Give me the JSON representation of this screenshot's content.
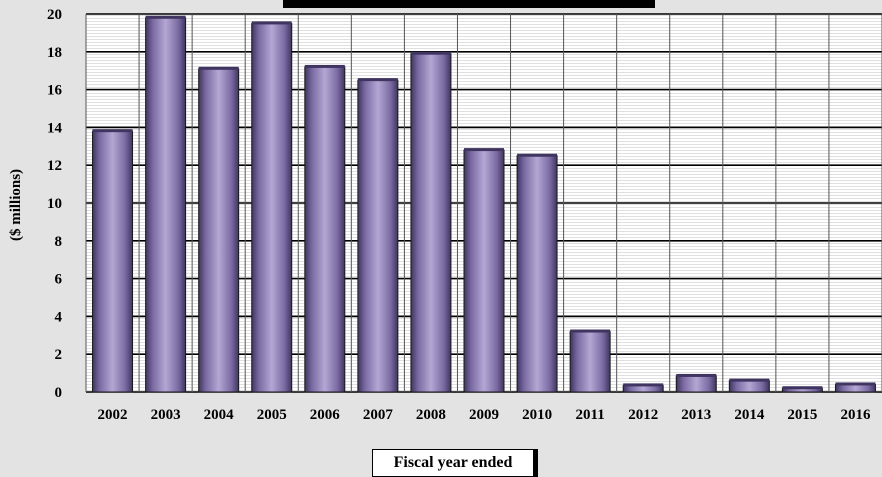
{
  "chart_data": {
    "type": "bar",
    "title": "",
    "xlabel": "Fiscal year ended",
    "ylabel": "($ millions)",
    "ylim": [
      0,
      20
    ],
    "yticks": [
      0,
      2,
      4,
      6,
      8,
      10,
      12,
      14,
      16,
      18,
      20
    ],
    "categories": [
      "2002",
      "2003",
      "2004",
      "2005",
      "2006",
      "2007",
      "2008",
      "2009",
      "2010",
      "2011",
      "2012",
      "2013",
      "2014",
      "2015",
      "2016"
    ],
    "values": [
      13.8,
      19.8,
      17.1,
      19.5,
      17.2,
      16.5,
      17.9,
      12.8,
      12.5,
      3.2,
      0.35,
      0.85,
      0.6,
      0.2,
      0.4
    ],
    "grid": true,
    "legend": "none",
    "colors": {
      "bar": "#7a6aa2",
      "bar_dark": "#3f3560",
      "bar_light": "#b4a7d4",
      "grid": "#000000",
      "title_bar": "#000000"
    }
  }
}
